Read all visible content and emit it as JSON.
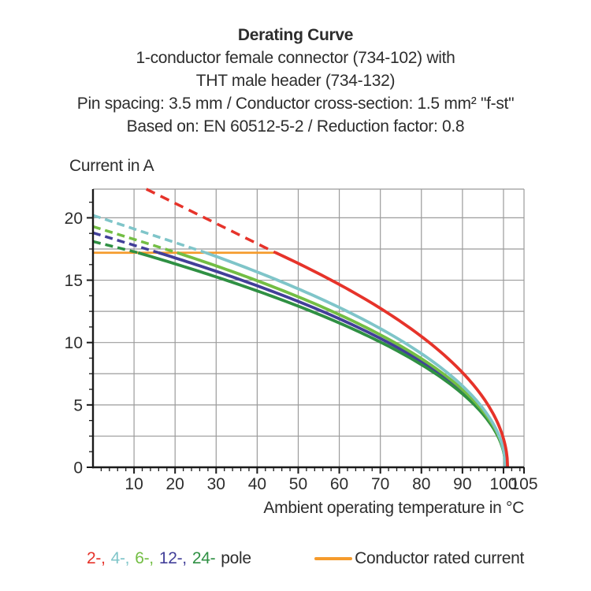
{
  "header": {
    "title": "Derating Curve",
    "subtitle_lines": [
      "1-conductor female connector (734-102) with",
      "THT male header (734-132)",
      "Pin spacing: 3.5 mm / Conductor cross-section: 1.5 mm² \"f-st\"",
      "Based on: EN 60512-5-2 / Reduction factor: 0.8"
    ]
  },
  "axis_titles": {
    "y": "Current in A",
    "x": "Ambient operating temperature in °C"
  },
  "chart_data": {
    "type": "line",
    "title": "Derating Curve",
    "xlabel": "Ambient operating temperature in °C",
    "ylabel": "Current in A",
    "xlim": [
      0,
      105
    ],
    "ylim": [
      0,
      22.3
    ],
    "x_tick_labels": [
      10,
      20,
      30,
      40,
      50,
      60,
      70,
      80,
      90,
      100,
      105
    ],
    "y_tick_labels": [
      0,
      5,
      10,
      15,
      20
    ],
    "x_grid_step": 10,
    "y_grid_step": 2.5,
    "x_minor_step": 2,
    "y_minor_step": 1.25,
    "grid": true,
    "legend_position": "bottom",
    "colors": {
      "grid": "#9B9B9B",
      "axis": "#1A1A1A",
      "text": "#2D2D2D"
    },
    "rated_current": {
      "label": "Conductor rated current",
      "value": 17.2,
      "x_span": [
        0,
        44.5
      ],
      "color": "#F59B2C"
    },
    "series": [
      {
        "name": "2-pole",
        "color": "#E6332A",
        "dashed_points": [
          [
            13,
            22.3
          ],
          [
            44.5,
            17.2
          ]
        ],
        "solid_model": {
          "form": "I = A*sqrt(Tc-T)",
          "A": 2.289,
          "Tc": 101,
          "from": 44.5
        },
        "points": [
          [
            13,
            22.3
          ],
          [
            20,
            21.2
          ],
          [
            30,
            19.9
          ],
          [
            40,
            18.0
          ],
          [
            44.5,
            17.2
          ],
          [
            50,
            16.4
          ],
          [
            60,
            14.7
          ],
          [
            70,
            12.7
          ],
          [
            80,
            10.5
          ],
          [
            90,
            7.6
          ],
          [
            95,
            5.6
          ],
          [
            100,
            2.3
          ],
          [
            101,
            0
          ]
        ]
      },
      {
        "name": "4-pole",
        "color": "#7FC5C9",
        "dashed_points": [
          [
            0,
            20.2
          ],
          [
            27.5,
            17.2
          ]
        ],
        "solid_model": {
          "form": "I = A*sqrt(Tc-T)",
          "A": 2.013,
          "Tc": 100.5,
          "from": 27.5
        },
        "points": [
          [
            0,
            20.2
          ],
          [
            10,
            19.1
          ],
          [
            20,
            18.1
          ],
          [
            27.5,
            17.2
          ],
          [
            30,
            16.9
          ],
          [
            40,
            15.7
          ],
          [
            50,
            14.3
          ],
          [
            60,
            12.8
          ],
          [
            70,
            11.1
          ],
          [
            80,
            9.1
          ],
          [
            90,
            6.5
          ],
          [
            95,
            4.7
          ],
          [
            100,
            1.4
          ],
          [
            100.5,
            0
          ]
        ]
      },
      {
        "name": "6-pole",
        "color": "#73BE44",
        "dashed_points": [
          [
            0,
            19.3
          ],
          [
            20.5,
            17.2
          ]
        ],
        "solid_model": {
          "form": "I = A*sqrt(Tc-T)",
          "A": 1.923,
          "Tc": 100.5,
          "from": 20.5
        },
        "points": [
          [
            0,
            19.3
          ],
          [
            10,
            18.3
          ],
          [
            20,
            17.3
          ],
          [
            30,
            16.1
          ],
          [
            40,
            15.0
          ],
          [
            50,
            13.7
          ],
          [
            60,
            12.2
          ],
          [
            70,
            10.6
          ],
          [
            80,
            8.7
          ],
          [
            90,
            6.2
          ],
          [
            95,
            4.5
          ],
          [
            100,
            1.4
          ],
          [
            100.5,
            0
          ]
        ]
      },
      {
        "name": "12-pole",
        "color": "#423F99",
        "dashed_points": [
          [
            0,
            18.8
          ],
          [
            16,
            17.2
          ]
        ],
        "solid_model": {
          "form": "I = A*sqrt(Tc-T)",
          "A": 1.871,
          "Tc": 100.5,
          "from": 16
        },
        "points": [
          [
            0,
            18.8
          ],
          [
            10,
            17.8
          ],
          [
            16,
            17.2
          ],
          [
            20,
            16.8
          ],
          [
            30,
            15.7
          ],
          [
            40,
            14.6
          ],
          [
            50,
            13.3
          ],
          [
            60,
            11.9
          ],
          [
            70,
            10.3
          ],
          [
            80,
            8.5
          ],
          [
            90,
            6.1
          ],
          [
            95,
            4.4
          ],
          [
            100,
            1.3
          ],
          [
            100.5,
            0
          ]
        ]
      },
      {
        "name": "24-pole",
        "color": "#2F9043",
        "dashed_points": [
          [
            0,
            18.1
          ],
          [
            11,
            17.2
          ]
        ],
        "solid_model": {
          "form": "I = A*sqrt(Tc-T)",
          "A": 1.818,
          "Tc": 100.5,
          "from": 11
        },
        "points": [
          [
            0,
            18.1
          ],
          [
            10,
            17.3
          ],
          [
            20,
            16.3
          ],
          [
            30,
            15.3
          ],
          [
            40,
            14.1
          ],
          [
            50,
            12.9
          ],
          [
            60,
            11.6
          ],
          [
            70,
            10.0
          ],
          [
            80,
            8.2
          ],
          [
            90,
            5.9
          ],
          [
            95,
            4.3
          ],
          [
            100,
            1.3
          ],
          [
            100.5,
            0
          ]
        ]
      }
    ]
  },
  "legend": {
    "poles": [
      {
        "label": "2-",
        "color": "#E6332A"
      },
      {
        "label": "4-",
        "color": "#7FC5C9"
      },
      {
        "label": "6-",
        "color": "#73BE44"
      },
      {
        "label": "12-",
        "color": "#423F99"
      },
      {
        "label": "24-",
        "color": "#2F9043"
      }
    ],
    "poles_suffix": "pole",
    "rated": {
      "label": "Conductor rated current",
      "color": "#F59B2C"
    }
  }
}
